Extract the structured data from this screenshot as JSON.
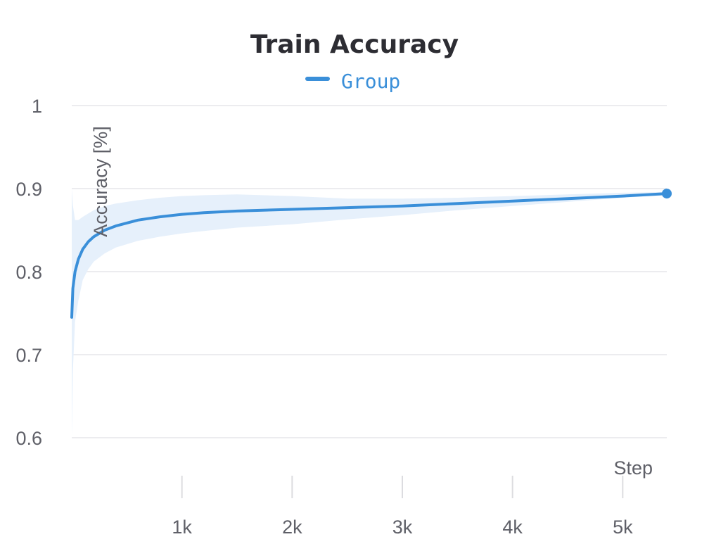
{
  "chart_data": {
    "type": "line",
    "title": "Train Accuracy",
    "xlabel": "Step",
    "ylabel": "Accuracy [%]",
    "xlim": [
      0,
      5400
    ],
    "ylim": [
      0.6,
      1.0
    ],
    "grid": true,
    "legend_position": "top-center",
    "y_ticks": [
      {
        "value": 1.0,
        "label": "1"
      },
      {
        "value": 0.9,
        "label": "0.9"
      },
      {
        "value": 0.8,
        "label": "0.8"
      },
      {
        "value": 0.7,
        "label": "0.7"
      },
      {
        "value": 0.6,
        "label": "0.6"
      }
    ],
    "x_ticks": [
      {
        "value": 1000,
        "label": "1k"
      },
      {
        "value": 2000,
        "label": "2k"
      },
      {
        "value": 3000,
        "label": "3k"
      },
      {
        "value": 4000,
        "label": "4k"
      },
      {
        "value": 5000,
        "label": "5k"
      }
    ],
    "series": [
      {
        "name": "Group",
        "color": "#3a8fd9",
        "band_color": "#e6f0fb",
        "x": [
          0,
          10,
          30,
          60,
          100,
          150,
          200,
          300,
          400,
          600,
          800,
          1000,
          1200,
          1500,
          2000,
          2500,
          3000,
          3500,
          4000,
          4500,
          5000,
          5400
        ],
        "y": [
          0.745,
          0.78,
          0.8,
          0.815,
          0.827,
          0.836,
          0.842,
          0.85,
          0.855,
          0.862,
          0.866,
          0.869,
          0.871,
          0.873,
          0.875,
          0.877,
          0.879,
          0.882,
          0.885,
          0.888,
          0.891,
          0.894
        ],
        "upper": [
          0.9,
          0.88,
          0.862,
          0.862,
          0.866,
          0.87,
          0.874,
          0.879,
          0.882,
          0.886,
          0.889,
          0.891,
          0.892,
          0.893,
          0.891,
          0.888,
          0.888,
          0.889,
          0.891,
          0.893,
          0.895,
          0.896
        ],
        "lower": [
          0.6,
          0.68,
          0.74,
          0.765,
          0.79,
          0.803,
          0.812,
          0.822,
          0.829,
          0.837,
          0.842,
          0.846,
          0.849,
          0.853,
          0.857,
          0.863,
          0.868,
          0.874,
          0.879,
          0.884,
          0.889,
          0.892
        ]
      }
    ]
  }
}
